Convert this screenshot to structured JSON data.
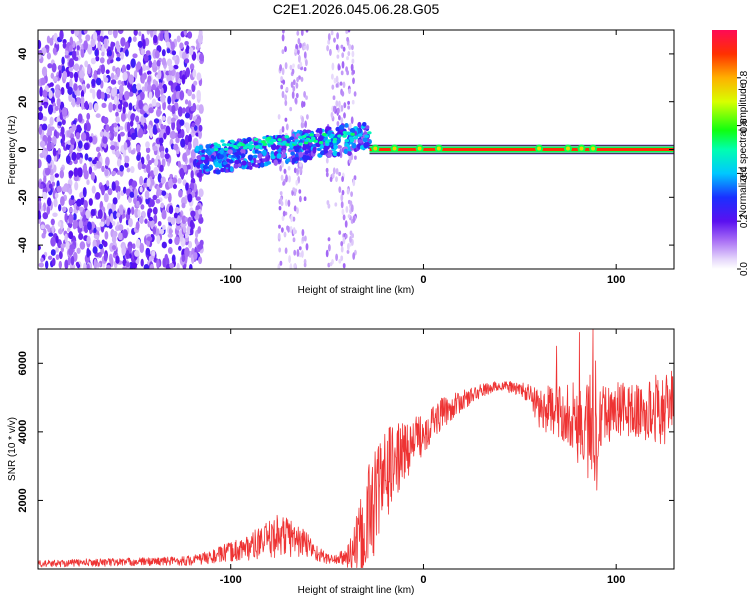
{
  "title": "C2E1.2026.045.06.28.G05",
  "colors": {
    "snr_line": "#ee3333",
    "spectral_low": "#7a22ee",
    "axis": "#000000",
    "background": "#ffffff"
  },
  "chart_data": [
    {
      "type": "heatmap",
      "title": "C2E1.2026.045.06.28.G05",
      "xlabel": "Height of straight line (km)",
      "ylabel": "Frequency (Hz)",
      "xlim": [
        -200,
        130
      ],
      "ylim": [
        -50,
        50
      ],
      "x_ticks": [
        -100,
        0,
        100
      ],
      "y_ticks": [
        -40,
        -20,
        0,
        20,
        40
      ],
      "colorbar": {
        "label": "Normalized spectral amplitude",
        "range": [
          0,
          1
        ],
        "ticks": [
          0.0,
          0.2,
          0.4,
          0.6,
          0.8
        ],
        "colormap": "rainbow (purple to red)"
      },
      "features": {
        "noise_region_x": [
          -200,
          -115
        ],
        "diffuse_noise_bands_x": [
          [
            -75,
            -60
          ],
          [
            -50,
            -35
          ]
        ],
        "turbulent_signal_x": [
          -118,
          -28
        ],
        "turbulent_signal_freq_hz": [
          -5,
          10
        ],
        "stable_tone_x": [
          -28,
          130
        ],
        "stable_tone_freq_hz": 0,
        "stable_tone_amplitude": 0.9,
        "tone_perturbations_x": [
          -25,
          -15,
          -2,
          8,
          60,
          75,
          82,
          88
        ]
      }
    },
    {
      "type": "line",
      "xlabel": "Height of straight line (km)",
      "ylabel": "SNR (10 * v/v)",
      "xlim": [
        -200,
        130
      ],
      "ylim": [
        0,
        7000
      ],
      "x_ticks": [
        -100,
        0,
        100
      ],
      "y_ticks": [
        2000,
        4000,
        6000
      ],
      "series": [
        {
          "name": "SNR",
          "x": [
            -200,
            -180,
            -160,
            -140,
            -120,
            -110,
            -100,
            -90,
            -80,
            -75,
            -70,
            -60,
            -55,
            -50,
            -45,
            -40,
            -35,
            -30,
            -28,
            -25,
            -22,
            -20,
            -18,
            -15,
            -12,
            -10,
            -5,
            0,
            5,
            10,
            20,
            30,
            40,
            50,
            55,
            60,
            65,
            70,
            75,
            80,
            82,
            85,
            88,
            90,
            92,
            95,
            100,
            110,
            115,
            120,
            125,
            130
          ],
          "values": [
            150,
            180,
            200,
            220,
            250,
            350,
            500,
            650,
            850,
            1000,
            950,
            700,
            450,
            300,
            280,
            350,
            600,
            1100,
            1600,
            2100,
            2400,
            2700,
            2900,
            3100,
            3300,
            3400,
            3700,
            4000,
            4300,
            4550,
            4900,
            5200,
            5350,
            5250,
            5100,
            4700,
            4650,
            4550,
            4600,
            4300,
            4100,
            4200,
            4000,
            4650,
            4800,
            4500,
            4700,
            4600,
            4500,
            4700,
            4600,
            5100
          ],
          "noise_amplitude": [
            100,
            110,
            120,
            120,
            150,
            200,
            300,
            400,
            550,
            650,
            600,
            400,
            250,
            150,
            150,
            300,
            900,
            1500,
            1800,
            1600,
            1500,
            1400,
            1300,
            1100,
            1000,
            900,
            700,
            650,
            550,
            450,
            300,
            200,
            150,
            200,
            300,
            600,
            700,
            800,
            900,
            1200,
            1500,
            1600,
            1800,
            2000,
            1200,
            900,
            800,
            800,
            900,
            1000,
            1000,
            800
          ],
          "spikes": [
            {
              "x": 81,
              "y": 6900
            },
            {
              "x": 88,
              "y": 7000
            },
            {
              "x": 90,
              "y": 2300
            },
            {
              "x": 69,
              "y": 6500
            },
            {
              "x": 75,
              "y": 3700
            }
          ]
        }
      ]
    }
  ]
}
